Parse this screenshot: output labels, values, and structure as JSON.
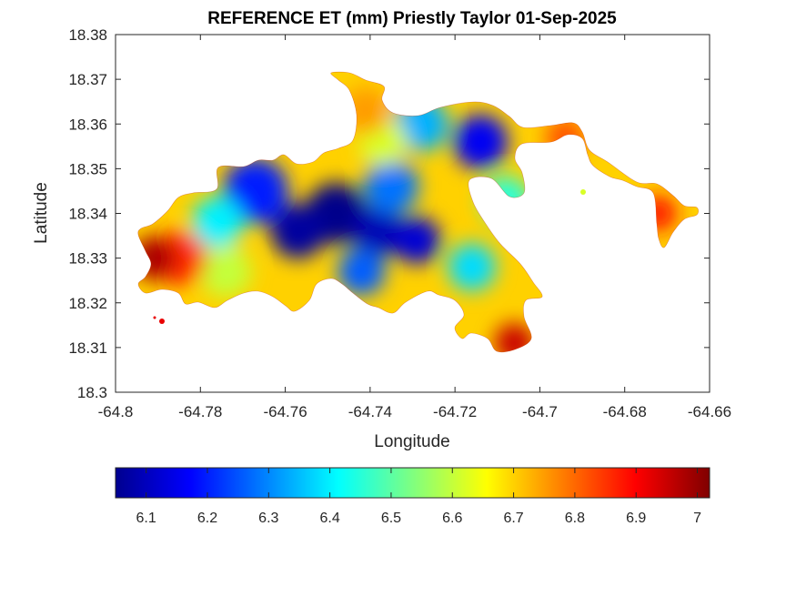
{
  "chart_data": {
    "type": "heatmap",
    "title": "REFERENCE ET (mm) Priestly Taylor 01-Sep-2025",
    "xlabel": "Longitude",
    "ylabel": "Latitude",
    "xlim": [
      -64.8,
      -64.66
    ],
    "ylim": [
      18.3,
      18.38
    ],
    "xticks": [
      -64.8,
      -64.78,
      -64.76,
      -64.74,
      -64.72,
      -64.7,
      -64.68,
      -64.66
    ],
    "xtick_labels": [
      "-64.8",
      "-64.78",
      "-64.76",
      "-64.74",
      "-64.72",
      "-64.7",
      "-64.68",
      "-64.66"
    ],
    "yticks": [
      18.3,
      18.31,
      18.32,
      18.33,
      18.34,
      18.35,
      18.36,
      18.37,
      18.38
    ],
    "ytick_labels": [
      "18.3",
      "18.31",
      "18.32",
      "18.33",
      "18.34",
      "18.35",
      "18.36",
      "18.37",
      "18.38"
    ],
    "grid": false,
    "colormap": "jet",
    "colorbar": {
      "orientation": "horizontal",
      "placement": "below",
      "range": [
        6.05,
        7.02
      ],
      "ticks": [
        6.1,
        6.2,
        6.3,
        6.4,
        6.5,
        6.6,
        6.7,
        6.8,
        6.9,
        7
      ],
      "tick_labels": [
        "6.1",
        "6.2",
        "6.3",
        "6.4",
        "6.5",
        "6.6",
        "6.7",
        "6.8",
        "6.9",
        "7"
      ]
    },
    "regions": [
      {
        "lon": -64.748,
        "lat": 18.34,
        "value": 6.06
      },
      {
        "lon": -64.757,
        "lat": 18.336,
        "value": 6.08
      },
      {
        "lon": -64.738,
        "lat": 18.336,
        "value": 6.1
      },
      {
        "lon": -64.729,
        "lat": 18.334,
        "value": 6.13
      },
      {
        "lon": -64.714,
        "lat": 18.356,
        "value": 6.16
      },
      {
        "lon": -64.767,
        "lat": 18.345,
        "value": 6.2
      },
      {
        "lon": -64.735,
        "lat": 18.346,
        "value": 6.28
      },
      {
        "lon": -64.742,
        "lat": 18.327,
        "value": 6.26
      },
      {
        "lon": -64.728,
        "lat": 18.36,
        "value": 6.34
      },
      {
        "lon": -64.776,
        "lat": 18.338,
        "value": 6.4
      },
      {
        "lon": -64.716,
        "lat": 18.328,
        "value": 6.38
      },
      {
        "lon": -64.774,
        "lat": 18.327,
        "value": 6.6
      },
      {
        "lon": -64.737,
        "lat": 18.356,
        "value": 6.62
      },
      {
        "lon": -64.708,
        "lat": 18.343,
        "value": 6.45
      },
      {
        "lon": -64.741,
        "lat": 18.363,
        "value": 6.75
      },
      {
        "lon": -64.785,
        "lat": 18.33,
        "value": 6.86
      },
      {
        "lon": -64.791,
        "lat": 18.33,
        "value": 6.98
      },
      {
        "lon": -64.706,
        "lat": 18.311,
        "value": 6.95
      },
      {
        "lon": -64.672,
        "lat": 18.34,
        "value": 6.88
      },
      {
        "lon": -64.694,
        "lat": 18.357,
        "value": 6.82
      }
    ]
  }
}
